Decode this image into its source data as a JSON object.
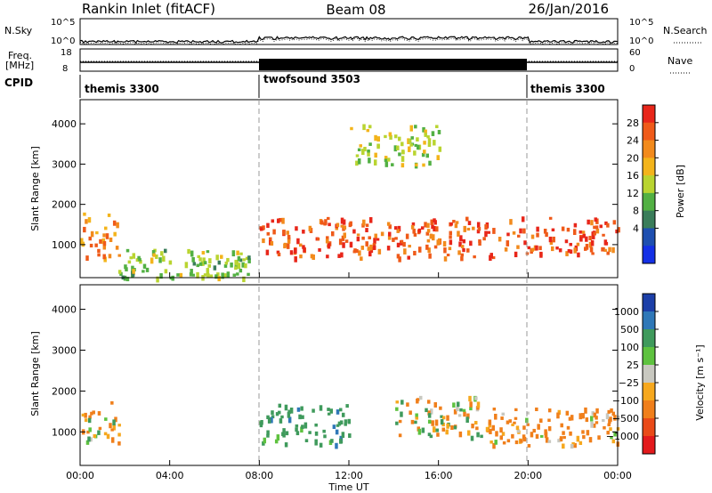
{
  "header": {
    "title": "Rankin Inlet (fitACF)",
    "beam": "Beam 08",
    "date": "26/Jan/2016"
  },
  "summary": {
    "nsky_label": "N.Sky",
    "nsky_ticks": [
      "10^5",
      "10^0"
    ],
    "nsearch_label": "N.Search",
    "nsearch_ticks": [
      "10^5",
      "10^0"
    ],
    "freq_label_1": "Freq.",
    "freq_label_2": "[MHz]",
    "freq_ticks": [
      "18",
      "8"
    ],
    "nave_label": "Nave",
    "nave_ticks": [
      "60",
      "0"
    ],
    "cpid_label": "CPID",
    "programs": [
      {
        "name": "themis 3300",
        "start_h": 0
      },
      {
        "name": "twofsound 3503",
        "start_h": 8
      },
      {
        "name": "themis 3300",
        "start_h": 20
      }
    ]
  },
  "power_panel": {
    "ylabel": "Slant Range [km]",
    "yticks": [
      "1000",
      "2000",
      "3000",
      "4000"
    ],
    "colorbar_label": "Power [dB]",
    "colorbar_ticks": [
      "4",
      "8",
      "12",
      "16",
      "20",
      "24",
      "28"
    ],
    "colors": [
      "#1430e6",
      "#1e4fb0",
      "#3a7d5a",
      "#52b043",
      "#b9d430",
      "#f3b41b",
      "#f28a1c",
      "#ef5a19",
      "#e8261a"
    ]
  },
  "velocity_panel": {
    "ylabel": "Slant Range [km]",
    "yticks": [
      "1000",
      "2000",
      "3000",
      "4000"
    ],
    "colorbar_label": "Velocity [m s⁻¹]",
    "colorbar_ticks": [
      "1000",
      "500",
      "100",
      "25",
      "−25",
      "−100",
      "−500",
      "−1000"
    ],
    "colors": [
      "#1c3fa8",
      "#2f78b8",
      "#3f9a5c",
      "#5ec23f",
      "#c8c8c0",
      "#f6a81e",
      "#f07f1b",
      "#e94a18",
      "#e31a1c"
    ]
  },
  "xaxis": {
    "label": "Time UT",
    "ticks": [
      "00:00",
      "04:00",
      "08:00",
      "12:00",
      "16:00",
      "20:00",
      "00:00"
    ]
  },
  "chart_data": [
    {
      "type": "line",
      "name": "N.Sky / N.Search summary",
      "x": [
        0,
        2,
        4,
        6,
        8,
        10,
        12,
        14,
        16,
        18,
        20,
        22,
        24
      ],
      "ylog": true,
      "ylim": [
        1,
        100000
      ]
    },
    {
      "type": "line",
      "name": "Freq / Nave summary",
      "freq_ylim": [
        8,
        18
      ],
      "nave_ylim": [
        0,
        60
      ],
      "twofsound_interval_h": [
        8,
        20
      ]
    },
    {
      "type": "heatmap",
      "name": "Power",
      "xlabel": "Time UT",
      "ylabel": "Slant Range [km]",
      "xlim": [
        0,
        24
      ],
      "ylim": [
        180,
        4600
      ],
      "zlabel": "Power [dB]",
      "zlim": [
        0,
        32
      ],
      "regions": [
        {
          "t": [
            0,
            1.7
          ],
          "r": [
            700,
            1800
          ],
          "level": 24
        },
        {
          "t": [
            1.7,
            7.5
          ],
          "r": [
            200,
            900
          ],
          "level": 14
        },
        {
          "t": [
            8,
            20
          ],
          "r": [
            700,
            1700
          ],
          "level": 28
        },
        {
          "t": [
            12,
            16
          ],
          "r": [
            3000,
            4000
          ],
          "level": 16
        },
        {
          "t": [
            20,
            24
          ],
          "r": [
            800,
            1700
          ],
          "level": 28
        }
      ]
    },
    {
      "type": "heatmap",
      "name": "Velocity",
      "xlabel": "Time UT",
      "ylabel": "Slant Range [km]",
      "xlim": [
        0,
        24
      ],
      "ylim": [
        180,
        4600
      ],
      "zlabel": "Velocity [m s⁻¹]",
      "zlim": [
        -1000,
        1000
      ],
      "regions": [
        {
          "t": [
            0,
            1.7
          ],
          "r": [
            700,
            1800
          ],
          "level": -100
        },
        {
          "t": [
            8,
            12
          ],
          "r": [
            700,
            1700
          ],
          "level": 300
        },
        {
          "t": [
            14,
            18
          ],
          "r": [
            900,
            1900
          ],
          "level": 0
        },
        {
          "t": [
            18,
            24
          ],
          "r": [
            700,
            1600
          ],
          "level": -200
        }
      ]
    }
  ]
}
